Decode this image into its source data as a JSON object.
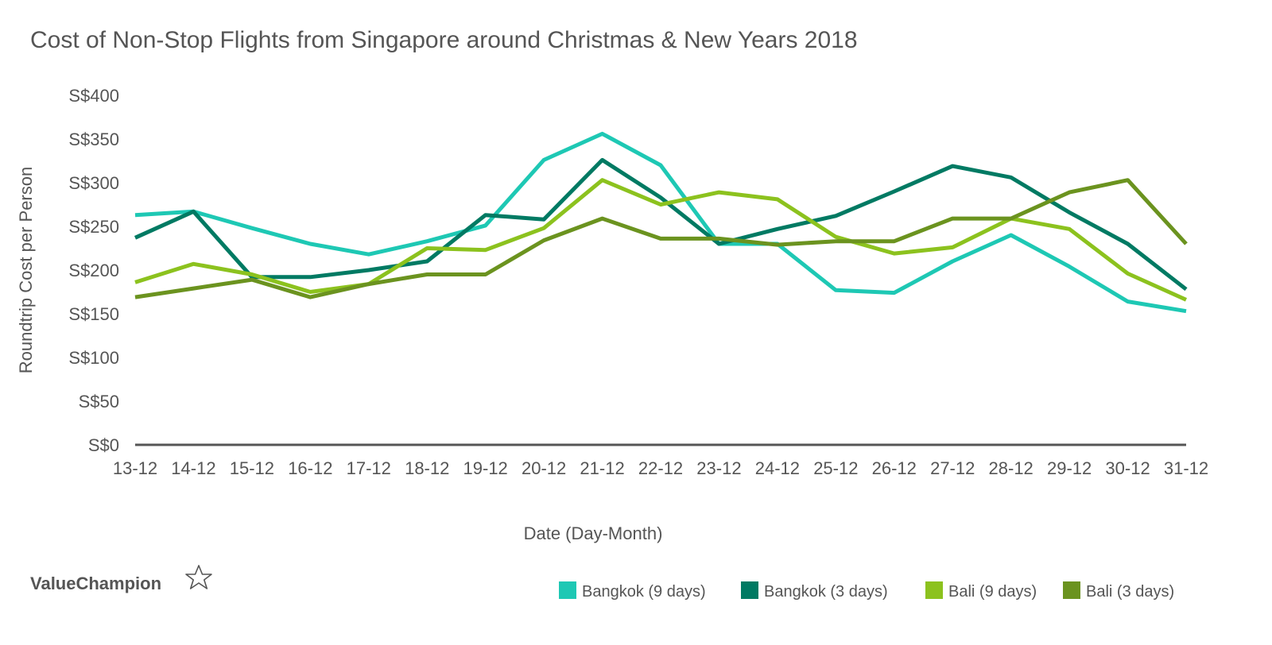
{
  "chart_data": {
    "type": "line",
    "title": "Cost of Non-Stop Flights from Singapore around Christmas & New Years 2018",
    "xlabel": "Date (Day-Month)",
    "ylabel": "Roundtrip Cost per Person",
    "categories": [
      "13-12",
      "14-12",
      "15-12",
      "16-12",
      "17-12",
      "18-12",
      "19-12",
      "20-12",
      "21-12",
      "22-12",
      "23-12",
      "24-12",
      "25-12",
      "26-12",
      "27-12",
      "28-12",
      "29-12",
      "30-12",
      "31-12"
    ],
    "yticks": [
      "S$0",
      "S$50",
      "S$100",
      "S$150",
      "S$200",
      "S$250",
      "S$300",
      "S$350",
      "S$400"
    ],
    "ylim": [
      0,
      400
    ],
    "grid": false,
    "legend_position": "bottom-right",
    "series": [
      {
        "name": "Bangkok (9 days)",
        "color": "#1ec8b4",
        "values": [
          263,
          267,
          248,
          230,
          218,
          233,
          251,
          326,
          356,
          320,
          230,
          230,
          177,
          174,
          210,
          240,
          204,
          164,
          153
        ]
      },
      {
        "name": "Bangkok (3 days)",
        "color": "#007a63",
        "values": [
          237,
          267,
          192,
          192,
          200,
          210,
          263,
          258,
          326,
          283,
          230,
          247,
          262,
          290,
          319,
          306,
          266,
          230,
          178
        ]
      },
      {
        "name": "Bali (9 days)",
        "color": "#8cc21e",
        "values": [
          186,
          207,
          195,
          175,
          184,
          225,
          223,
          248,
          303,
          275,
          289,
          281,
          238,
          219,
          226,
          259,
          247,
          196,
          166
        ]
      },
      {
        "name": "Bali (3 days)",
        "color": "#6b931f",
        "values": [
          169,
          179,
          189,
          169,
          184,
          195,
          195,
          234,
          259,
          236,
          236,
          229,
          233,
          233,
          259,
          259,
          289,
          303,
          230
        ]
      }
    ]
  },
  "branding": {
    "logo_text": "ValueChampion",
    "logo_icon": "star-outline-icon"
  }
}
